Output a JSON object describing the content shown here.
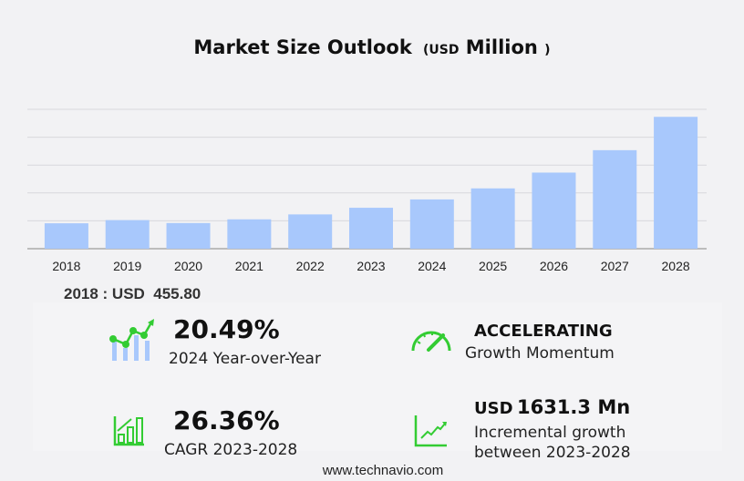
{
  "title": {
    "main": "Market Size Outlook",
    "open": "(",
    "unit": "USD",
    "unit_word": "Million",
    "close": ")"
  },
  "chart_data": {
    "type": "bar",
    "title": "Market Size Outlook (USD Million)",
    "categories": [
      "2018",
      "2019",
      "2020",
      "2021",
      "2022",
      "2023",
      "2024",
      "2025",
      "2026",
      "2027",
      "2028"
    ],
    "values": [
      455.8,
      513,
      460,
      527,
      615,
      734,
      884,
      1082,
      1365,
      1767,
      2365
    ],
    "ylim": [
      0,
      2500
    ],
    "grid": true,
    "bar_color": "#a8c8fc"
  },
  "base_label": "2018 : USD  455.80",
  "stats": [
    {
      "value": "20.49%",
      "label": "2024 Year-over-Year",
      "icon": "growth-chart-icon"
    },
    {
      "value": "ACCELERATING",
      "label": "Growth Momentum",
      "icon": "speedometer-icon"
    },
    {
      "value": "26.36%",
      "label": "CAGR 2023-2028",
      "icon": "bar-chart-icon"
    },
    {
      "value_prefix": "USD",
      "value": "1631.3 Mn",
      "label1": "Incremental growth",
      "label2": "between 2023-2028",
      "icon": "trend-line-icon"
    }
  ],
  "accent": "#33cc33",
  "footer": "www.technavio.com"
}
